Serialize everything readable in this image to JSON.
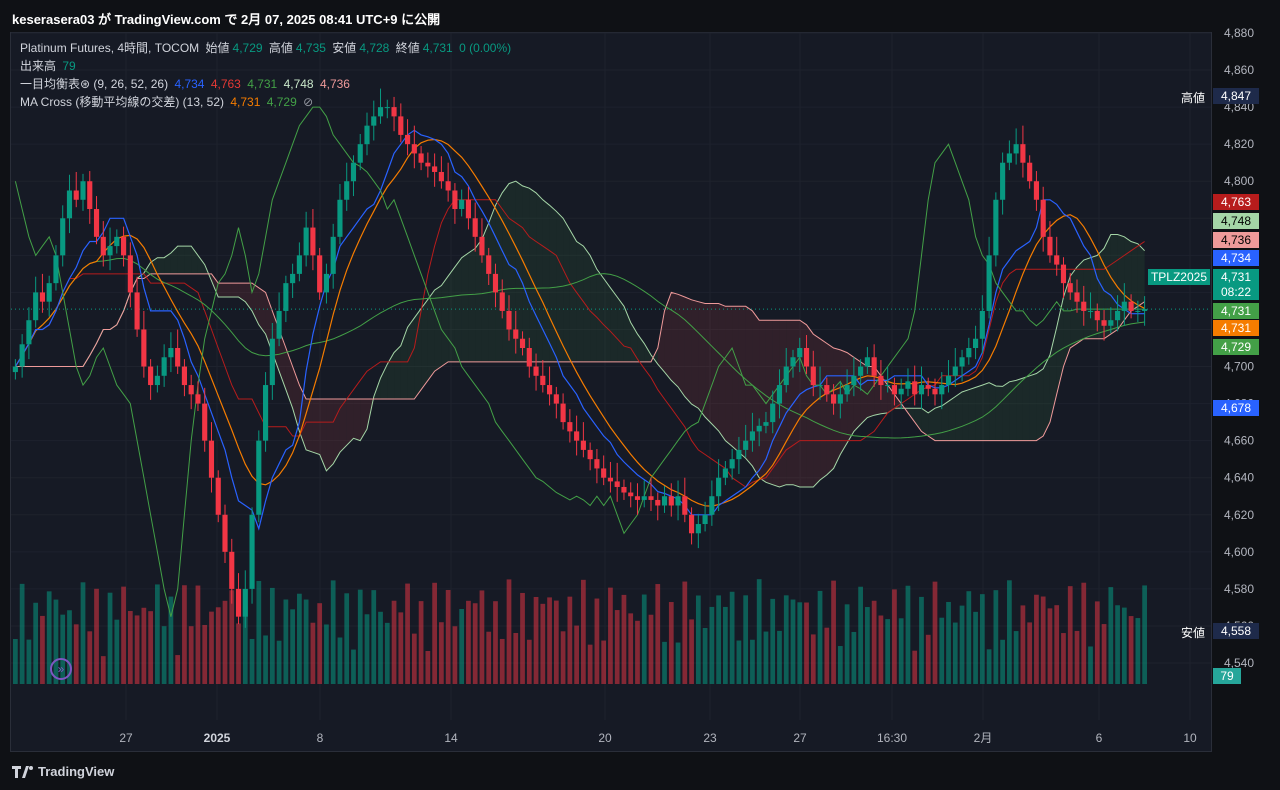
{
  "header": {
    "publish_text": "keserasera03 が TradingView.com で 2月 07, 2025 08:41 UTC+9 に公開"
  },
  "legend": {
    "main": {
      "symbol": "Platinum Futures, 4時間, TOCOM",
      "open_label": "始値",
      "open": "4,729",
      "high_label": "高値",
      "high": "4,735",
      "low_label": "安値",
      "low": "4,728",
      "close_label": "終値",
      "close": "4,731",
      "change": "0 (0.00%)"
    },
    "volume": {
      "label": "出来高",
      "value": "79"
    },
    "ichimoku": {
      "label": "一目均衡表⊛ (9, 26, 52, 26)",
      "v1": "4,734",
      "v2": "4,763",
      "v3": "4,731",
      "v4": "4,748",
      "v5": "4,736"
    },
    "ma_cross": {
      "label": "MA Cross (移動平均線の交差) (13, 52)",
      "v1": "4,731",
      "v2": "4,729",
      "icon": "hide-icon"
    }
  },
  "price_axis": [
    "4,880",
    "4,860",
    "4,840",
    "4,820",
    "4,800",
    "4,780",
    "4,760",
    "4,740",
    "4,720",
    "4,700",
    "4,680",
    "4,660",
    "4,640",
    "4,620",
    "4,600",
    "4,580",
    "4,560",
    "4,540"
  ],
  "time_axis": [
    "27",
    "2025",
    "8",
    "14",
    "20",
    "23",
    "27",
    "16:30",
    "2月",
    "6",
    "10"
  ],
  "markers": {
    "high": {
      "label": "高値",
      "value": "4,847"
    },
    "low": {
      "label": "安値",
      "value": "4,558"
    },
    "badges": [
      {
        "text": "4,763",
        "color": "#b71c1c"
      },
      {
        "text": "4,748",
        "color": "#a5d6a7"
      },
      {
        "text": "4,736",
        "color": "#ef9a9a"
      },
      {
        "text": "4,734",
        "color": "#2962ff"
      },
      {
        "text": "4,731",
        "color": "#089981"
      },
      {
        "text": "08:22",
        "color": "#089981"
      },
      {
        "text": "4,731",
        "color": "#43a047"
      },
      {
        "text": "4,731",
        "color": "#f57c00"
      },
      {
        "text": "4,729",
        "color": "#43a047"
      },
      {
        "text": "4,678",
        "color": "#2962ff"
      }
    ],
    "symbol_tag": "TPLZ2025",
    "volume_badge": "79"
  },
  "colors": {
    "up": "#089981",
    "down": "#f23645",
    "tenkan": "#2962ff",
    "kijun": "#b71c1c",
    "chikou": "#43a047",
    "span_a": "#a5d6a7",
    "span_b": "#ef9a9a",
    "ma_fast": "#f57c00",
    "ma_slow": "#43a047"
  },
  "footer": {
    "brand": "TradingView"
  },
  "chart_data": {
    "type": "candlestick",
    "symbol": "Platinum Futures, 4時間, TOCOM",
    "ylim": [
      4540,
      4885
    ],
    "candles_close": [
      4700,
      4712,
      4725,
      4740,
      4735,
      4745,
      4760,
      4780,
      4795,
      4790,
      4800,
      4785,
      4770,
      4760,
      4765,
      4770,
      4760,
      4740,
      4720,
      4700,
      4690,
      4695,
      4705,
      4710,
      4700,
      4690,
      4685,
      4680,
      4660,
      4640,
      4620,
      4600,
      4580,
      4565,
      4580,
      4620,
      4660,
      4690,
      4715,
      4730,
      4745,
      4750,
      4760,
      4775,
      4760,
      4740,
      4750,
      4770,
      4790,
      4800,
      4810,
      4820,
      4830,
      4835,
      4840,
      4840,
      4835,
      4825,
      4820,
      4815,
      4810,
      4808,
      4805,
      4800,
      4795,
      4785,
      4790,
      4780,
      4770,
      4760,
      4750,
      4740,
      4730,
      4720,
      4715,
      4710,
      4700,
      4695,
      4690,
      4685,
      4680,
      4670,
      4665,
      4660,
      4655,
      4650,
      4645,
      4640,
      4638,
      4635,
      4632,
      4630,
      4628,
      4630,
      4628,
      4625,
      4630,
      4625,
      4630,
      4620,
      4610,
      4615,
      4620,
      4630,
      4640,
      4645,
      4650,
      4655,
      4660,
      4665,
      4668,
      4670,
      4680,
      4690,
      4700,
      4705,
      4710,
      4700,
      4690,
      4690,
      4685,
      4680,
      4685,
      4690,
      4695,
      4700,
      4705,
      4695,
      4690,
      4690,
      4685,
      4688,
      4692,
      4685,
      4690,
      4688,
      4685,
      4690,
      4695,
      4700,
      4705,
      4710,
      4715,
      4730,
      4760,
      4790,
      4810,
      4815,
      4820,
      4810,
      4800,
      4790,
      4770,
      4760,
      4755,
      4745,
      4740,
      4735,
      4730,
      4730,
      4725,
      4722,
      4725,
      4730,
      4735,
      4730,
      4730,
      4731
    ]
  }
}
